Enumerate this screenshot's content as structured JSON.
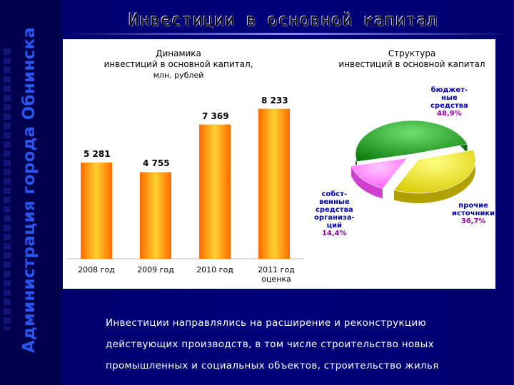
{
  "sidebar_title": "Администрация города Обнинска",
  "page_title": "Инвестиции в основной капитал",
  "chart_data": [
    {
      "type": "bar",
      "title_lines": [
        "Динамика",
        "инвестиций в основной капитал,",
        "млн. рублей"
      ],
      "categories": [
        "2008 год",
        "2009 год",
        "2010 год",
        "2011 год оценка"
      ],
      "values": [
        5281,
        4755,
        7369,
        8233
      ],
      "value_labels": [
        "5 281",
        "4 755",
        "7 369",
        "8 233"
      ],
      "ylim": [
        0,
        9000
      ],
      "bar_color": "#ff7a00",
      "grid": false
    },
    {
      "type": "pie",
      "title_lines": [
        "Структура",
        "инвестиций в основной капитал"
      ],
      "slices": [
        {
          "label_lines": [
            "бюджет-",
            "ные",
            "средства"
          ],
          "value": 48.9,
          "value_label": "48,9%",
          "color": "#1a9a1a"
        },
        {
          "label_lines": [
            "прочие",
            "источники"
          ],
          "value": 36.7,
          "value_label": "36,7%",
          "color": "#e8e000"
        },
        {
          "label_lines": [
            "собст-",
            "венные",
            "средства",
            "организа-",
            "ций"
          ],
          "value": 14.4,
          "value_label": "14,4%",
          "color": "#ff66ff"
        }
      ]
    }
  ],
  "footer_lines": [
    "Инвестиции направлялись на расширение и реконструкцию",
    "действующих производств, в том числе строительство новых",
    "промышленных и социальных объектов, строительство жилья"
  ],
  "colors": {
    "background": "#00006e",
    "sidebar_text": "#2a55ee",
    "footer_text": "#ffffff",
    "pie_label_blue": "#0000aa",
    "pie_value_purple": "#9000a0"
  }
}
